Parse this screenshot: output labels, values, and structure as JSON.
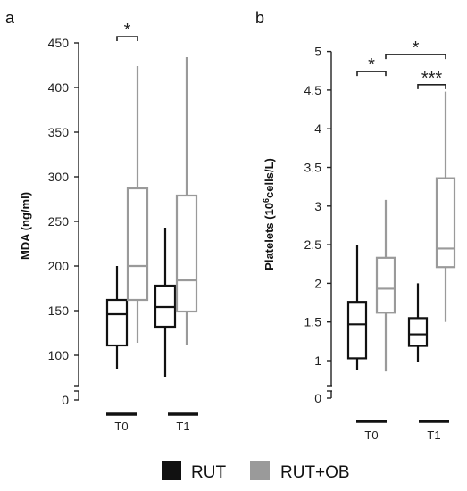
{
  "panels": [
    "a",
    "b"
  ],
  "legend": {
    "entries": [
      {
        "label": "RUT",
        "color": "#111111"
      },
      {
        "label": "RUT+OB",
        "color": "#9a9a9a"
      }
    ]
  },
  "chart_data": [
    {
      "type": "box",
      "panel": "a",
      "ylabel": "MDA (ng/ml)",
      "ylim": [
        0,
        450
      ],
      "yticks": [
        "0",
        "100",
        "150",
        "200",
        "250",
        "300",
        "350",
        "400",
        "450"
      ],
      "categories": [
        "T0",
        "T1"
      ],
      "axis_break": true,
      "series": [
        {
          "name": "RUT",
          "color": "#111111",
          "boxes": [
            {
              "min": 85,
              "q1": 111,
              "median": 146,
              "q3": 162,
              "max": 200
            },
            {
              "min": 76,
              "q1": 132,
              "median": 154,
              "q3": 178,
              "max": 243
            }
          ]
        },
        {
          "name": "RUT+OB",
          "color": "#9a9a9a",
          "boxes": [
            {
              "min": 114,
              "q1": 162,
              "median": 200,
              "q3": 287,
              "max": 424
            },
            {
              "min": 112,
              "q1": 149,
              "median": 184,
              "q3": 279,
              "max": 434
            }
          ]
        }
      ],
      "significance": [
        {
          "label": "*",
          "from": [
            0,
            0
          ],
          "to": [
            0,
            1
          ],
          "y": 457
        }
      ]
    },
    {
      "type": "box",
      "panel": "b",
      "ylabel": "Platelets (10⁶cells/L)",
      "ylim": [
        0,
        5
      ],
      "yticks": [
        "0",
        "1",
        "1.5",
        "2",
        "2.5",
        "3",
        "3.5",
        "4",
        "4.5",
        "5"
      ],
      "categories": [
        "T0",
        "T1"
      ],
      "axis_break": true,
      "series": [
        {
          "name": "RUT",
          "color": "#111111",
          "boxes": [
            {
              "min": 0.88,
              "q1": 1.03,
              "median": 1.47,
              "q3": 1.76,
              "max": 2.5
            },
            {
              "min": 0.98,
              "q1": 1.19,
              "median": 1.34,
              "q3": 1.55,
              "max": 2.0
            }
          ]
        },
        {
          "name": "RUT+OB",
          "color": "#9a9a9a",
          "boxes": [
            {
              "min": 0.86,
              "q1": 1.62,
              "median": 1.93,
              "q3": 2.33,
              "max": 3.08
            },
            {
              "min": 1.5,
              "q1": 2.21,
              "median": 2.45,
              "q3": 3.36,
              "max": 4.48
            }
          ]
        }
      ],
      "significance": [
        {
          "label": "*",
          "from": [
            0,
            0
          ],
          "to": [
            0,
            1
          ],
          "y": 4.74
        },
        {
          "label": "*",
          "from": [
            0,
            1
          ],
          "to": [
            1,
            1
          ],
          "y": 4.96
        },
        {
          "label": "***",
          "from": [
            1,
            0
          ],
          "to": [
            1,
            1
          ],
          "y": 4.57
        }
      ]
    }
  ]
}
